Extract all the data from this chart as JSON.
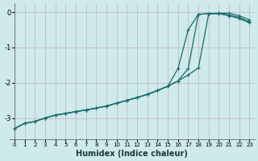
{
  "xlabel": "Humidex (Indice chaleur)",
  "background_color": "#ceeaea",
  "grid_color": "#c4aec4",
  "line_color": "#1a6b6b",
  "xlim": [
    -0.5,
    23.5
  ],
  "ylim": [
    -3.6,
    0.25
  ],
  "xticks": [
    0,
    1,
    2,
    3,
    4,
    5,
    6,
    7,
    8,
    9,
    10,
    11,
    12,
    13,
    14,
    15,
    16,
    17,
    18,
    19,
    20,
    21,
    22,
    23
  ],
  "yticks": [
    0,
    -1,
    -2,
    -3
  ],
  "series": {
    "line1_x": [
      0,
      1,
      2,
      3,
      4,
      5,
      6,
      7,
      8,
      9,
      10,
      11,
      12,
      13,
      14,
      15,
      16,
      17,
      18,
      19,
      20,
      21,
      22,
      23
    ],
    "line1_y": [
      -3.3,
      -3.15,
      -3.1,
      -3.0,
      -2.92,
      -2.87,
      -2.82,
      -2.77,
      -2.72,
      -2.66,
      -2.58,
      -2.5,
      -2.42,
      -2.33,
      -2.22,
      -2.1,
      -1.95,
      -1.78,
      -1.58,
      -0.05,
      -0.03,
      -0.03,
      -0.1,
      -0.22
    ],
    "line2_x": [
      0,
      1,
      2,
      3,
      4,
      5,
      6,
      7,
      8,
      9,
      10,
      11,
      12,
      13,
      14,
      15,
      16,
      17,
      18,
      19,
      20,
      21,
      22,
      23
    ],
    "line2_y": [
      -3.3,
      -3.15,
      -3.1,
      -3.0,
      -2.92,
      -2.87,
      -2.82,
      -2.77,
      -2.72,
      -2.66,
      -2.58,
      -2.5,
      -2.42,
      -2.33,
      -2.22,
      -2.1,
      -1.95,
      -1.6,
      -0.06,
      -0.04,
      -0.04,
      -0.1,
      -0.18,
      -0.3
    ],
    "line3_x": [
      0,
      1,
      2,
      3,
      4,
      5,
      6,
      7,
      8,
      9,
      10,
      11,
      12,
      13,
      14,
      15,
      16,
      17,
      18,
      19,
      20,
      21,
      22,
      23
    ],
    "line3_y": [
      -3.3,
      -3.15,
      -3.1,
      -3.0,
      -2.92,
      -2.87,
      -2.82,
      -2.77,
      -2.72,
      -2.66,
      -2.58,
      -2.5,
      -2.42,
      -2.33,
      -2.22,
      -2.1,
      -1.6,
      -0.5,
      -0.06,
      -0.04,
      -0.04,
      -0.08,
      -0.15,
      -0.28
    ]
  }
}
